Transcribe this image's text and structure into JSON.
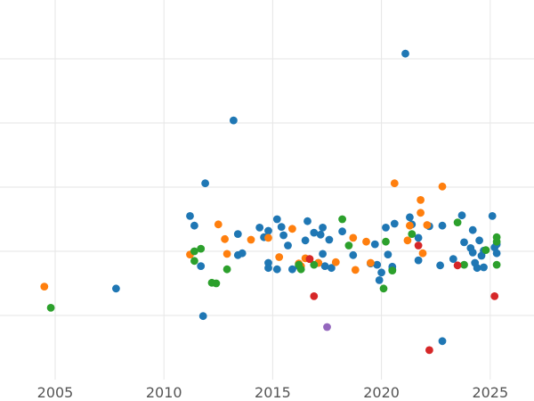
{
  "chart_data": {
    "type": "scatter",
    "title": "",
    "xlabel": "",
    "ylabel": "",
    "xlim": [
      2000,
      2027
    ],
    "ylim": [
      0,
      6
    ],
    "grid": true,
    "x_ticks": [
      2005,
      2010,
      2015,
      2020,
      2025
    ],
    "y_gridlines": [
      1,
      2,
      3,
      4,
      5
    ],
    "y_tick_labels_shown": false,
    "legend": "none",
    "colors": {
      "blue": "#1f77b4",
      "orange": "#ff7f0e",
      "green": "#2ca02c",
      "red": "#d62728",
      "purple": "#9467bd"
    },
    "series": [
      {
        "color_key": "blue",
        "points": [
          [
            2007.8,
            1.42
          ],
          [
            2011.2,
            2.55
          ],
          [
            2011.4,
            2.4
          ],
          [
            2011.7,
            1.77
          ],
          [
            2011.8,
            0.99
          ],
          [
            2011.9,
            3.06
          ],
          [
            2013.2,
            4.04
          ],
          [
            2013.4,
            2.27
          ],
          [
            2013.4,
            1.94
          ],
          [
            2013.6,
            1.97
          ],
          [
            2014.4,
            2.37
          ],
          [
            2014.6,
            2.22
          ],
          [
            2014.8,
            2.32
          ],
          [
            2014.8,
            1.82
          ],
          [
            2014.8,
            1.74
          ],
          [
            2015.2,
            2.5
          ],
          [
            2015.2,
            1.72
          ],
          [
            2015.4,
            2.38
          ],
          [
            2015.5,
            2.25
          ],
          [
            2015.7,
            2.09
          ],
          [
            2015.9,
            1.72
          ],
          [
            2016.2,
            1.77
          ],
          [
            2016.5,
            2.17
          ],
          [
            2016.6,
            2.47
          ],
          [
            2016.9,
            2.29
          ],
          [
            2017.1,
            1.82
          ],
          [
            2017.2,
            2.26
          ],
          [
            2017.3,
            2.37
          ],
          [
            2017.3,
            1.96
          ],
          [
            2017.4,
            1.77
          ],
          [
            2017.6,
            2.18
          ],
          [
            2017.7,
            1.74
          ],
          [
            2018.2,
            2.31
          ],
          [
            2018.7,
            1.94
          ],
          [
            2019.5,
            1.81
          ],
          [
            2019.7,
            2.11
          ],
          [
            2019.8,
            1.79
          ],
          [
            2019.9,
            1.55
          ],
          [
            2020.0,
            1.67
          ],
          [
            2020.2,
            2.37
          ],
          [
            2020.3,
            1.95
          ],
          [
            2020.5,
            1.76
          ],
          [
            2020.5,
            1.72
          ],
          [
            2020.6,
            2.43
          ],
          [
            2021.1,
            5.08
          ],
          [
            2021.3,
            2.53
          ],
          [
            2021.4,
            2.42
          ],
          [
            2021.7,
            2.21
          ],
          [
            2021.7,
            1.86
          ],
          [
            2022.2,
            2.39
          ],
          [
            2022.7,
            1.78
          ],
          [
            2022.8,
            0.6
          ],
          [
            2022.8,
            2.4
          ],
          [
            2023.3,
            1.88
          ],
          [
            2023.7,
            2.56
          ],
          [
            2023.8,
            2.14
          ],
          [
            2024.1,
            2.05
          ],
          [
            2024.2,
            2.33
          ],
          [
            2024.2,
            1.98
          ],
          [
            2024.3,
            1.82
          ],
          [
            2024.4,
            1.74
          ],
          [
            2024.5,
            2.17
          ],
          [
            2024.6,
            1.93
          ],
          [
            2024.7,
            2.01
          ],
          [
            2024.7,
            1.75
          ],
          [
            2025.1,
            2.55
          ],
          [
            2025.2,
            2.06
          ],
          [
            2025.3,
            2.11
          ],
          [
            2025.3,
            1.97
          ]
        ]
      },
      {
        "color_key": "orange",
        "points": [
          [
            2004.5,
            1.45
          ],
          [
            2011.2,
            1.95
          ],
          [
            2012.5,
            2.42
          ],
          [
            2012.8,
            2.19
          ],
          [
            2012.9,
            1.96
          ],
          [
            2014.0,
            2.18
          ],
          [
            2014.8,
            2.21
          ],
          [
            2015.3,
            1.91
          ],
          [
            2015.9,
            2.35
          ],
          [
            2016.2,
            1.81
          ],
          [
            2016.3,
            1.77
          ],
          [
            2016.5,
            1.89
          ],
          [
            2016.7,
            1.88
          ],
          [
            2017.1,
            1.82
          ],
          [
            2017.9,
            1.83
          ],
          [
            2018.7,
            2.21
          ],
          [
            2018.8,
            1.71
          ],
          [
            2019.3,
            2.15
          ],
          [
            2019.5,
            1.82
          ],
          [
            2020.6,
            3.06
          ],
          [
            2021.2,
            2.17
          ],
          [
            2021.3,
            2.4
          ],
          [
            2021.8,
            2.6
          ],
          [
            2021.8,
            2.8
          ],
          [
            2021.9,
            1.97
          ],
          [
            2022.1,
            2.41
          ],
          [
            2022.8,
            3.01
          ]
        ]
      },
      {
        "color_key": "green",
        "points": [
          [
            2004.8,
            1.12
          ],
          [
            2011.4,
            2.0
          ],
          [
            2011.4,
            1.85
          ],
          [
            2011.7,
            2.04
          ],
          [
            2012.2,
            1.51
          ],
          [
            2012.4,
            1.5
          ],
          [
            2012.9,
            1.72
          ],
          [
            2016.2,
            1.79
          ],
          [
            2016.3,
            1.72
          ],
          [
            2016.9,
            1.79
          ],
          [
            2018.2,
            2.5
          ],
          [
            2018.5,
            2.09
          ],
          [
            2020.1,
            1.42
          ],
          [
            2020.2,
            2.15
          ],
          [
            2020.5,
            1.7
          ],
          [
            2021.4,
            2.27
          ],
          [
            2023.5,
            2.45
          ],
          [
            2023.8,
            1.79
          ],
          [
            2024.8,
            2.02
          ],
          [
            2025.3,
            2.22
          ],
          [
            2025.3,
            2.15
          ],
          [
            2025.3,
            1.79
          ]
        ]
      },
      {
        "color_key": "red",
        "points": [
          [
            2016.7,
            1.88
          ],
          [
            2016.9,
            1.3
          ],
          [
            2021.7,
            2.09
          ],
          [
            2022.2,
            0.46
          ],
          [
            2023.5,
            1.78
          ],
          [
            2025.2,
            1.3
          ]
        ]
      },
      {
        "color_key": "purple",
        "points": [
          [
            2017.5,
            0.82
          ]
        ]
      }
    ]
  }
}
